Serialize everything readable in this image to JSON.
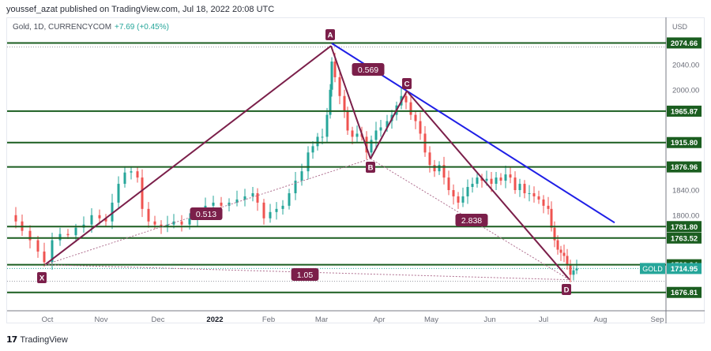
{
  "header": {
    "publisher_line": "youssef_azat published on TradingView.com, Jul 18, 2022 20:08 UTC",
    "symbol": "Gold, 1D, CURRENCYCOM",
    "change": "+7.69 (+0.45%)"
  },
  "footer": {
    "logo": "17",
    "brand": "TradingView"
  },
  "colors": {
    "up": "#26a69a",
    "down": "#ef5350",
    "level_line": "#1b5e20",
    "pattern": "#7b1f4a",
    "trendline": "#1f1fe6",
    "gold_badge": "#26a69a"
  },
  "chart_data": {
    "type": "candlestick",
    "title": "Gold, 1D, CURRENCYCOM",
    "currency": "USD",
    "y_axis_ticks": [
      2040.0,
      2000.0,
      1840.0,
      1800.0
    ],
    "x_axis_labels": [
      "Oct",
      "Nov",
      "Dec",
      "2022",
      "Feb",
      "Mar",
      "Apr",
      "May",
      "Jun",
      "Jul",
      "Aug",
      "Sep"
    ],
    "horizontal_levels": [
      2074.66,
      1965.87,
      1915.8,
      1876.96,
      1781.8,
      1763.52,
      1720.94,
      1676.81
    ],
    "last_price": {
      "symbol": "GOLD",
      "value": 1714.95
    },
    "harmonic_pattern": {
      "points": [
        {
          "label": "X",
          "price": 1721,
          "date": "late Sep 2021"
        },
        {
          "label": "A",
          "price": 2070,
          "date": "Mar 8 2022"
        },
        {
          "label": "B",
          "price": 1890,
          "date": "Mar 29 2022"
        },
        {
          "label": "C",
          "price": 1998,
          "date": "Apr 18 2022"
        },
        {
          "label": "D",
          "price": 1697,
          "date": "Jul 14 2022"
        }
      ],
      "ratios": [
        {
          "label": "0.513",
          "between": "XB/XA"
        },
        {
          "label": "0.569",
          "between": "AC/AB"
        },
        {
          "label": "2.838",
          "between": "BD/BC"
        },
        {
          "label": "1.05",
          "between": "XD/XA"
        }
      ]
    },
    "trendline": {
      "from": {
        "date": "Mar 8 2022",
        "price": 2074
      },
      "to": {
        "date": "Aug 2022",
        "price": 1788
      }
    },
    "ylim": [
      1655,
      2095
    ],
    "grid": false,
    "legend": "none"
  }
}
